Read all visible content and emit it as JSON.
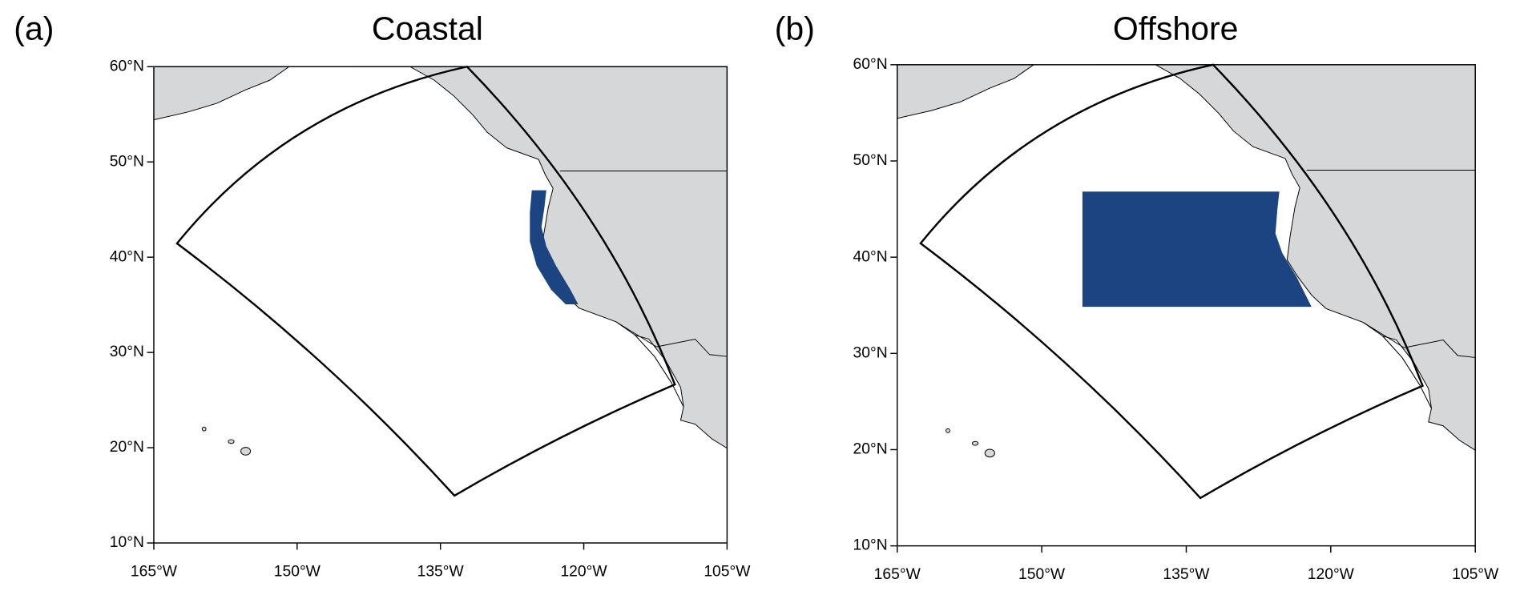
{
  "panels": [
    {
      "label": "(a)",
      "title": "Coastal",
      "xlim": [
        -165,
        -105
      ],
      "ylim": [
        10,
        60
      ],
      "xticks": [
        {
          "value": -165,
          "label": "165°W"
        },
        {
          "value": -150,
          "label": "150°W"
        },
        {
          "value": -135,
          "label": "135°W"
        },
        {
          "value": -120,
          "label": "120°W"
        },
        {
          "value": -105,
          "label": "105°W"
        }
      ],
      "yticks": [
        {
          "value": 10,
          "label": "10°N"
        },
        {
          "value": 20,
          "label": "20°N"
        },
        {
          "value": 30,
          "label": "30°N"
        },
        {
          "value": 40,
          "label": "40°N"
        },
        {
          "value": 50,
          "label": "50°N"
        },
        {
          "value": 60,
          "label": "60°N"
        }
      ]
    },
    {
      "label": "(b)",
      "title": "Offshore",
      "xlim": [
        -165,
        -105
      ],
      "ylim": [
        10,
        60
      ],
      "xticks": [
        {
          "value": -165,
          "label": "165°W"
        },
        {
          "value": -150,
          "label": "150°W"
        },
        {
          "value": -135,
          "label": "135°W"
        },
        {
          "value": -120,
          "label": "120°W"
        },
        {
          "value": -105,
          "label": "105°W"
        }
      ],
      "yticks": [
        {
          "value": 10,
          "label": "10°N"
        },
        {
          "value": 20,
          "label": "20°N"
        },
        {
          "value": 30,
          "label": "30°N"
        },
        {
          "value": 40,
          "label": "40°N"
        },
        {
          "value": 50,
          "label": "50°N"
        },
        {
          "value": 60,
          "label": "60°N"
        }
      ]
    }
  ]
}
